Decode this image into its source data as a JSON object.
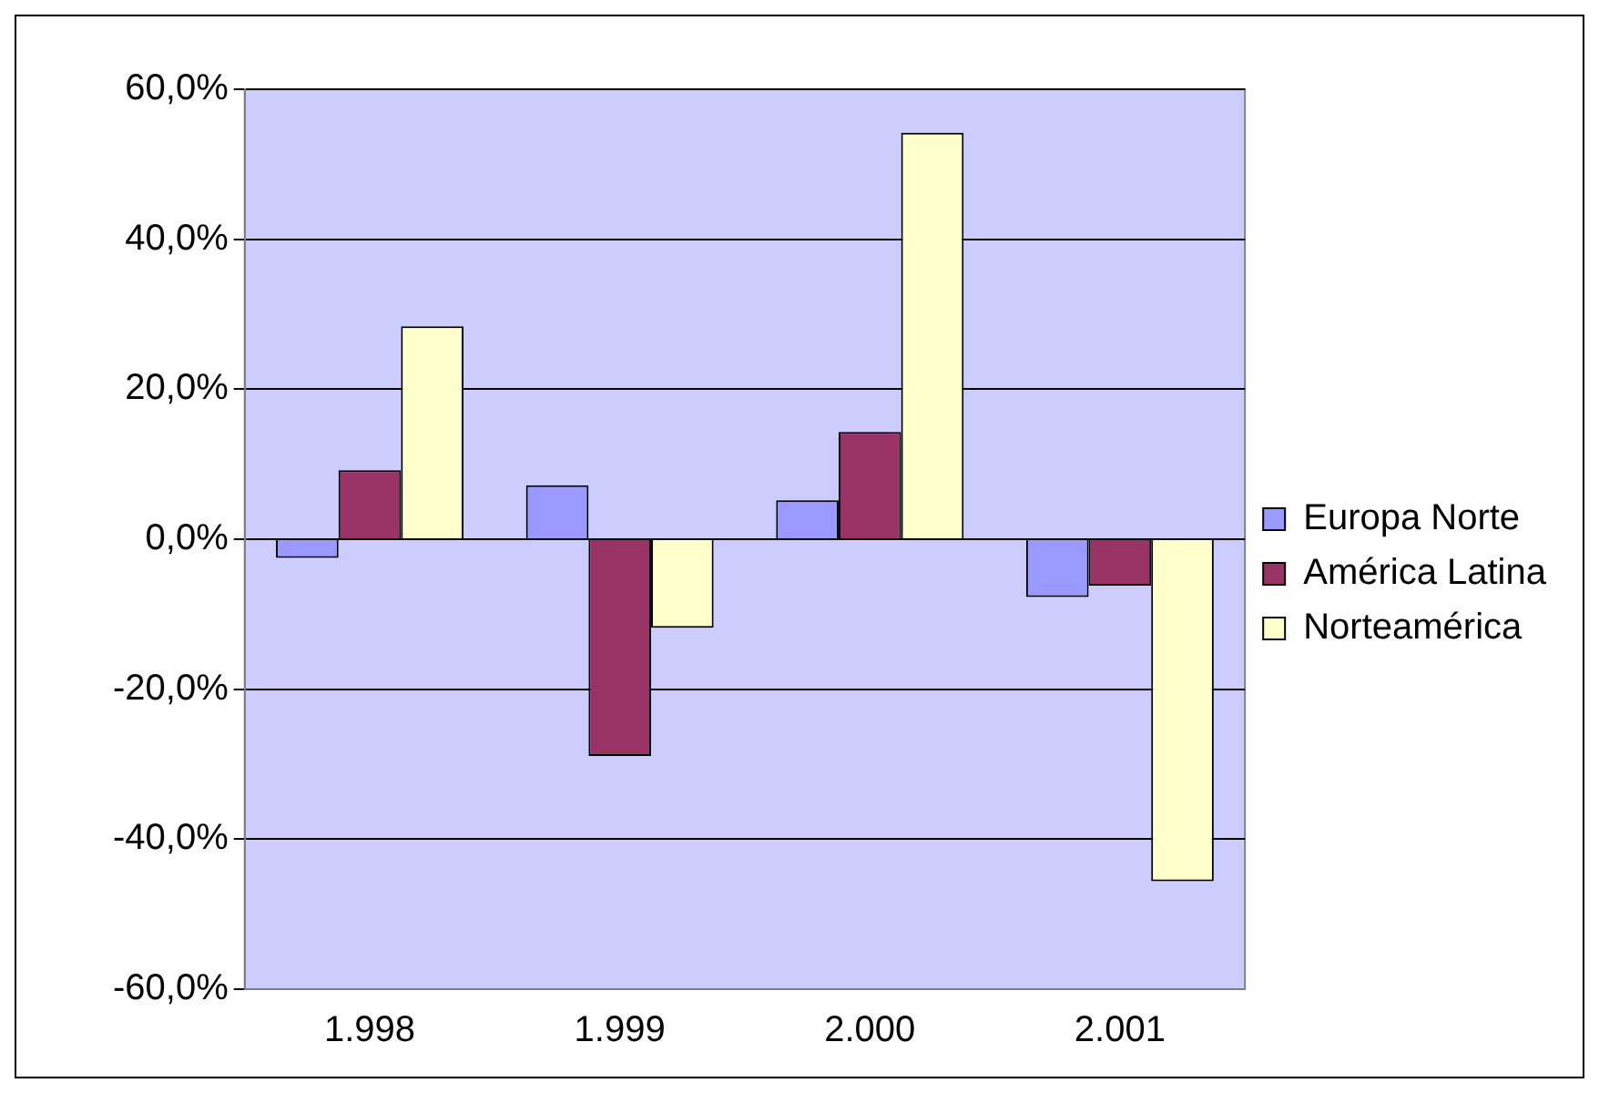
{
  "chart_data": {
    "type": "bar",
    "categories": [
      "1.998",
      "1.999",
      "2.000",
      "2.001"
    ],
    "series": [
      {
        "name": "Europa Norte",
        "color": "#9999ff",
        "values": [
          -2.5,
          7.2,
          5.2,
          -7.7
        ]
      },
      {
        "name": "América Latina",
        "color": "#993366",
        "values": [
          9.2,
          -28.9,
          14.3,
          -6.2
        ]
      },
      {
        "name": "Norteamérica",
        "color": "#ffffcc",
        "values": [
          28.4,
          -11.8,
          54.2,
          -45.6
        ]
      }
    ],
    "ylim": [
      -60,
      60
    ],
    "yticks": [
      {
        "value": -60,
        "label": "-60,0%"
      },
      {
        "value": -40,
        "label": "-40,0%"
      },
      {
        "value": -20,
        "label": "-20,0%"
      },
      {
        "value": 0,
        "label": "0,0%"
      },
      {
        "value": 20,
        "label": "20,0%"
      },
      {
        "value": 40,
        "label": "40,0%"
      },
      {
        "value": 60,
        "label": "60,0%"
      }
    ],
    "grid": "y",
    "legend": "right"
  }
}
